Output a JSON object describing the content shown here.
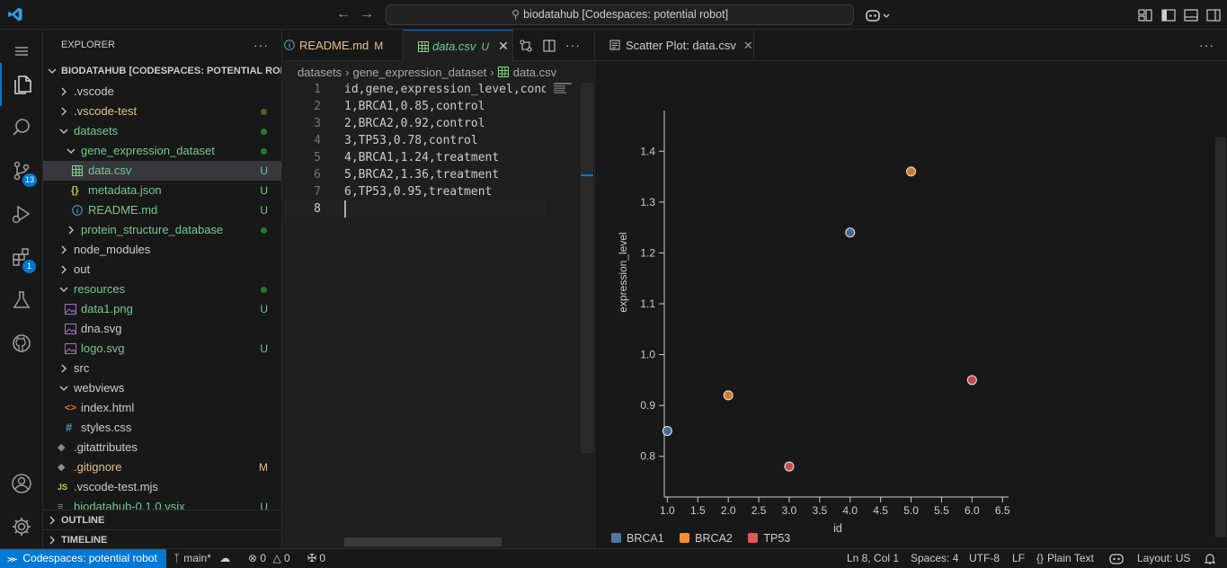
{
  "titlebar": {
    "search_text": "biodatahub [Codespaces: potential robot]"
  },
  "activity": {
    "scm_badge": "13",
    "extensions_badge": "1"
  },
  "explorer": {
    "header": "EXPLORER",
    "more": "···",
    "workspace": "BIODATAHUB [CODESPACES: POTENTIAL ROB...",
    "items": [
      {
        "label": ".vscode",
        "status": ""
      },
      {
        "label": ".vscode-test",
        "status": ""
      },
      {
        "label": "datasets",
        "status": ""
      },
      {
        "label": "gene_expression_dataset",
        "status": ""
      },
      {
        "label": "data.csv",
        "status": "U"
      },
      {
        "label": "metadata.json",
        "status": "U"
      },
      {
        "label": "README.md",
        "status": "U"
      },
      {
        "label": "protein_structure_database",
        "status": ""
      },
      {
        "label": "node_modules",
        "status": ""
      },
      {
        "label": "out",
        "status": ""
      },
      {
        "label": "resources",
        "status": ""
      },
      {
        "label": "data1.png",
        "status": "U"
      },
      {
        "label": "dna.svg",
        "status": ""
      },
      {
        "label": "logo.svg",
        "status": "U"
      },
      {
        "label": "src",
        "status": ""
      },
      {
        "label": "webviews",
        "status": ""
      },
      {
        "label": "index.html",
        "status": ""
      },
      {
        "label": "styles.css",
        "status": ""
      },
      {
        "label": ".gitattributes",
        "status": ""
      },
      {
        "label": ".gitignore",
        "status": "M"
      },
      {
        "label": ".vscode-test.mjs",
        "status": ""
      },
      {
        "label": "biodatahub-0.1.0.vsix",
        "status": "U"
      }
    ],
    "outline": "OUTLINE",
    "timeline": "TIMELINE"
  },
  "editor": {
    "tabs": [
      {
        "label": "README.md",
        "mod": "M"
      },
      {
        "label": "data.csv",
        "mod": "U"
      }
    ],
    "breadcrumb": [
      "datasets",
      "gene_expression_dataset",
      "data.csv"
    ],
    "lines": [
      {
        "n": "1",
        "text": "id,gene,expression_level,condition"
      },
      {
        "n": "2",
        "text": "1,BRCA1,0.85,control"
      },
      {
        "n": "3",
        "text": "2,BRCA2,0.92,control"
      },
      {
        "n": "4",
        "text": "3,TP53,0.78,control"
      },
      {
        "n": "5",
        "text": "4,BRCA1,1.24,treatment"
      },
      {
        "n": "6",
        "text": "5,BRCA2,1.36,treatment"
      },
      {
        "n": "7",
        "text": "6,TP53,0.95,treatment"
      },
      {
        "n": "8",
        "text": ""
      }
    ]
  },
  "preview": {
    "tab_label": "Scatter Plot: data.csv"
  },
  "chart_data": {
    "type": "scatter",
    "xlabel": "id",
    "ylabel": "expression_level",
    "xlim": [
      0.95,
      6.6
    ],
    "ylim": [
      0.72,
      1.48
    ],
    "xticks": [
      "1.0",
      "1.5",
      "2.0",
      "2.5",
      "3.0",
      "3.5",
      "4.0",
      "4.5",
      "5.0",
      "5.5",
      "6.0",
      "6.5"
    ],
    "yticks": [
      "0.8",
      "0.9",
      "1.0",
      "1.1",
      "1.2",
      "1.3",
      "1.4"
    ],
    "series": [
      {
        "name": "BRCA1",
        "color": "#4e79a7",
        "points": [
          [
            1,
            0.85
          ],
          [
            4,
            1.24
          ]
        ]
      },
      {
        "name": "BRCA2",
        "color": "#f28e2b",
        "points": [
          [
            2,
            0.92
          ],
          [
            5,
            1.36
          ]
        ]
      },
      {
        "name": "TP53",
        "color": "#e15759",
        "points": [
          [
            3,
            0.78
          ],
          [
            6,
            0.95
          ]
        ]
      }
    ]
  },
  "status": {
    "remote": "Codespaces: potential robot",
    "branch": "main*",
    "errors": "0",
    "warnings": "0",
    "ports": "0",
    "position": "Ln 8, Col 1",
    "spaces": "Spaces: 4",
    "encoding": "UTF-8",
    "eol": "LF",
    "language": "Plain Text",
    "layout": "Layout: US"
  }
}
